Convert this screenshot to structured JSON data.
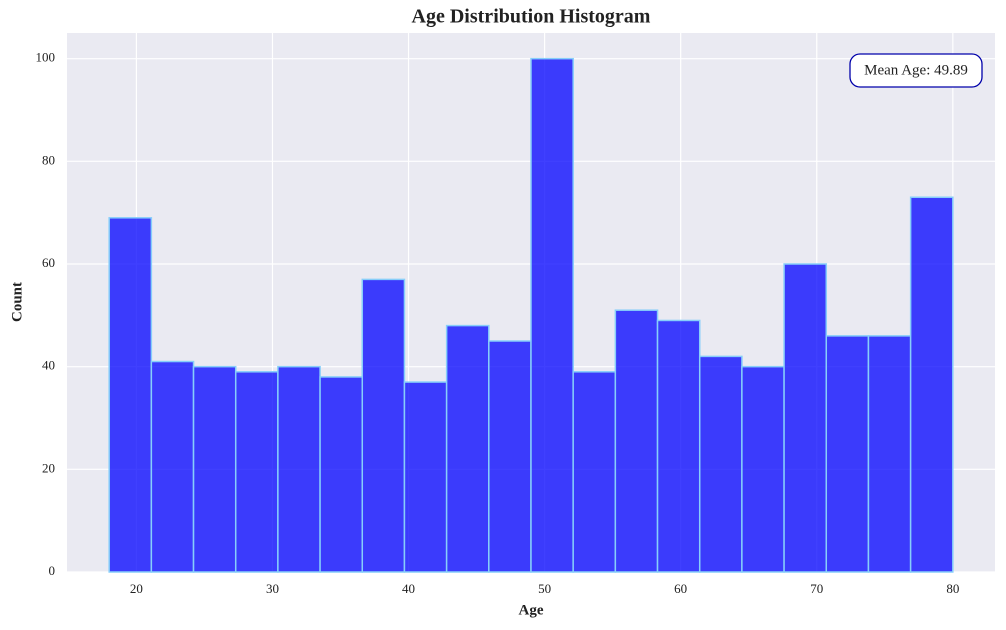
{
  "chart_data": {
    "type": "histogram",
    "title": "Age Distribution Histogram",
    "x_label": "Age",
    "y_label": "Count",
    "bins": [
      18,
      21.1,
      24.2,
      27.3,
      30.4,
      33.5,
      36.6,
      39.7,
      42.8,
      45.9,
      49,
      52.1,
      55.2,
      58.3,
      61.4,
      64.5,
      67.6,
      70.7,
      73.8,
      76.9,
      80
    ],
    "values": [
      69,
      41,
      40,
      39,
      40,
      38,
      57,
      37,
      48,
      45,
      100,
      39,
      51,
      49,
      42,
      40,
      60,
      46,
      46,
      73
    ],
    "color": "#0000ff",
    "edge_color": "#87cefa",
    "xlim": [
      14.9,
      83.1
    ],
    "xticks": [
      20,
      30,
      40,
      50,
      60,
      70,
      80
    ],
    "ylim": [
      0,
      105
    ],
    "yticks": [
      0,
      20,
      40,
      60,
      80,
      100
    ],
    "grid": true,
    "annotation": "Mean Age: 49.89"
  }
}
